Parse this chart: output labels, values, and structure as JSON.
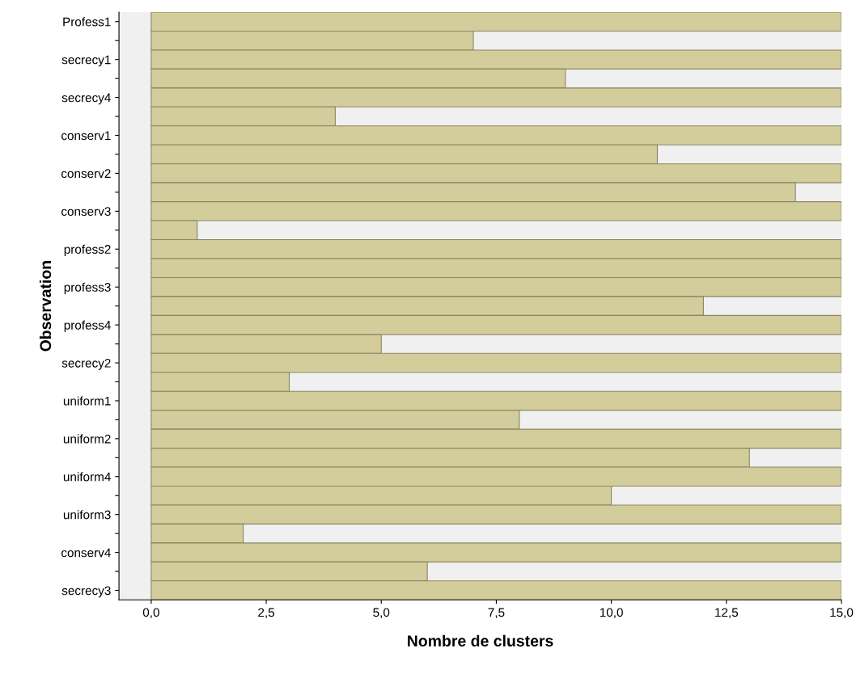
{
  "chart_data": {
    "type": "bar",
    "orientation": "horizontal",
    "xlabel": "Nombre de clusters",
    "ylabel": "Observation",
    "categories": [
      "Profess1",
      null,
      "secrecy1",
      null,
      "secrecy4",
      null,
      "conserv1",
      null,
      "conserv2",
      null,
      "conserv3",
      null,
      "profess2",
      null,
      "profess3",
      null,
      "profess4",
      null,
      "secrecy2",
      null,
      "uniform1",
      null,
      "uniform2",
      null,
      "uniform4",
      null,
      "uniform3",
      null,
      "conserv4",
      null,
      "secrecy3"
    ],
    "values": [
      15,
      7,
      15,
      9,
      15,
      4,
      15,
      11,
      15,
      14,
      15,
      1,
      15,
      15,
      15,
      12,
      15,
      5,
      15,
      3,
      15,
      8,
      15,
      13,
      15,
      10,
      15,
      2,
      15,
      6,
      15
    ],
    "color": "#d3cc9b",
    "xlim": [
      -0.7,
      15
    ],
    "xticks": [
      {
        "value": 0,
        "label": "0,0"
      },
      {
        "value": 2.5,
        "label": "2,5"
      },
      {
        "value": 5,
        "label": "5,0"
      },
      {
        "value": 7.5,
        "label": "7,5"
      },
      {
        "value": 10,
        "label": "10,0"
      },
      {
        "value": 12.5,
        "label": "12,5"
      },
      {
        "value": 15,
        "label": "15,0"
      }
    ],
    "grid": false,
    "legend": false
  }
}
